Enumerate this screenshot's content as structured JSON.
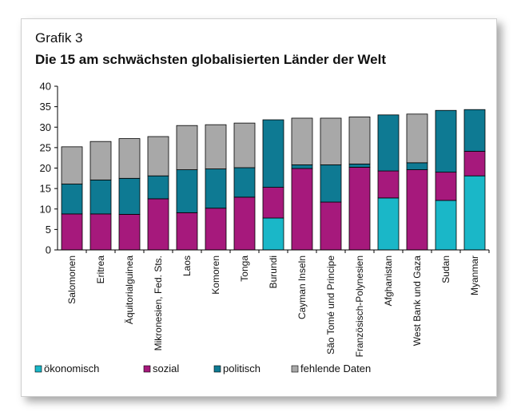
{
  "chart_data": {
    "type": "bar",
    "stacked": true,
    "supertitle": "Grafik 3",
    "title": "Die 15 am schwächsten globalisierten Länder der Welt",
    "categories": [
      "Salomonen",
      "Eritrea",
      "Äquitorialguinea",
      "Mikronesien, Fed. Sts.",
      "Laos",
      "Komoren",
      "Tonga",
      "Burundi",
      "Cayman Inseln",
      "São Tomé und Principe",
      "Französisch-Polynesien",
      "Afghanistan",
      "West Bank und Gaza",
      "Sudan",
      "Myanmar"
    ],
    "ylim": [
      0,
      40
    ],
    "yticks": [
      "0",
      "5",
      "10",
      "15",
      "20",
      "25",
      "30",
      "35",
      "40"
    ],
    "grid": false,
    "legend_position": "bottom",
    "series": [
      {
        "name": "ökonomisch",
        "color": "#1ab7c8",
        "values": [
          0,
          0,
          0,
          0,
          0,
          0,
          0,
          7.8,
          0,
          0,
          0,
          12.7,
          0,
          12.1,
          18.1
        ]
      },
      {
        "name": "sozial",
        "color": "#a6197c",
        "values": [
          8.8,
          8.8,
          8.7,
          12.5,
          9.1,
          10.2,
          12.9,
          7.5,
          19.9,
          11.7,
          20.2,
          6.6,
          19.6,
          6.9,
          6.0
        ]
      },
      {
        "name": "politisch",
        "color": "#0e7a93",
        "values": [
          7.3,
          8.3,
          8.8,
          5.6,
          10.5,
          9.6,
          7.2,
          16.5,
          0.9,
          9.1,
          0.8,
          13.7,
          1.7,
          15.1,
          10.2
        ]
      },
      {
        "name": "fehlende Daten",
        "color": "#a8a8a8",
        "values": [
          9.1,
          9.4,
          9.7,
          9.6,
          10.8,
          10.8,
          10.9,
          0,
          11.4,
          11.4,
          11.5,
          0,
          11.9,
          0,
          0
        ]
      }
    ]
  }
}
